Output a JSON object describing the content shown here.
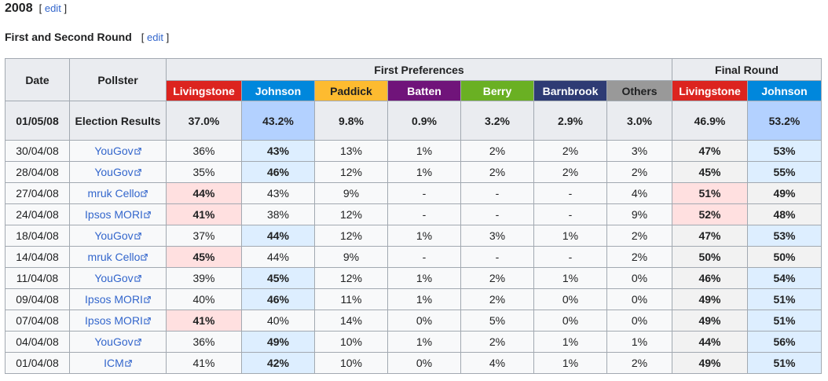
{
  "section": {
    "title": "2008",
    "edit_open": "[",
    "edit_label": "edit",
    "edit_close": "]"
  },
  "subsection": {
    "title": "First and Second Round",
    "edit_open": "[",
    "edit_label": "edit",
    "edit_close": "]"
  },
  "colors": {
    "livingstone": "#dc241f",
    "johnson": "#0087dc",
    "paddick": "#fdbb30",
    "batten": "#70147a",
    "berry": "#6ab023",
    "barnbrook": "#2e3b74",
    "others": "#999999"
  },
  "table": {
    "headers": {
      "date": "Date",
      "pollster": "Pollster",
      "first_prefs": "First Preferences",
      "final_round": "Final Round",
      "candidates": [
        "Livingstone",
        "Johnson",
        "Paddick",
        "Batten",
        "Berry",
        "Barnbrook",
        "Others"
      ],
      "final_candidates": [
        "Livingstone",
        "Johnson"
      ]
    },
    "election": {
      "date": "01/05/08",
      "label": "Election Results",
      "values": [
        "37.0%",
        "43.2%",
        "9.8%",
        "0.9%",
        "3.2%",
        "2.9%",
        "3.0%"
      ],
      "final": [
        "46.9%",
        "53.2%"
      ]
    },
    "rows": [
      {
        "date": "30/04/08",
        "pollster": "YouGov",
        "values": [
          "36%",
          "43%",
          "13%",
          "1%",
          "2%",
          "2%",
          "3%"
        ],
        "final": [
          "47%",
          "53%"
        ],
        "lead": "johnson",
        "final_lead": "johnson"
      },
      {
        "date": "28/04/08",
        "pollster": "YouGov",
        "values": [
          "35%",
          "46%",
          "12%",
          "1%",
          "2%",
          "2%",
          "2%"
        ],
        "final": [
          "45%",
          "55%"
        ],
        "lead": "johnson",
        "final_lead": "johnson"
      },
      {
        "date": "27/04/08",
        "pollster": "mruk Cello",
        "values": [
          "44%",
          "43%",
          "9%",
          "-",
          "-",
          "-",
          "4%"
        ],
        "final": [
          "51%",
          "49%"
        ],
        "lead": "livingstone",
        "final_lead": "livingstone"
      },
      {
        "date": "24/04/08",
        "pollster": "Ipsos MORI",
        "values": [
          "41%",
          "38%",
          "12%",
          "-",
          "-",
          "-",
          "9%"
        ],
        "final": [
          "52%",
          "48%"
        ],
        "lead": "livingstone",
        "final_lead": "livingstone"
      },
      {
        "date": "18/04/08",
        "pollster": "YouGov",
        "values": [
          "37%",
          "44%",
          "12%",
          "1%",
          "3%",
          "1%",
          "2%"
        ],
        "final": [
          "47%",
          "53%"
        ],
        "lead": "johnson",
        "final_lead": "johnson"
      },
      {
        "date": "14/04/08",
        "pollster": "mruk Cello",
        "values": [
          "45%",
          "44%",
          "9%",
          "-",
          "-",
          "-",
          "2%"
        ],
        "final": [
          "50%",
          "50%"
        ],
        "lead": "livingstone",
        "final_lead": "tie"
      },
      {
        "date": "11/04/08",
        "pollster": "YouGov",
        "values": [
          "39%",
          "45%",
          "12%",
          "1%",
          "2%",
          "1%",
          "0%"
        ],
        "final": [
          "46%",
          "54%"
        ],
        "lead": "johnson",
        "final_lead": "johnson"
      },
      {
        "date": "09/04/08",
        "pollster": "Ipsos MORI",
        "values": [
          "40%",
          "46%",
          "11%",
          "1%",
          "2%",
          "0%",
          "0%"
        ],
        "final": [
          "49%",
          "51%"
        ],
        "lead": "johnson",
        "final_lead": "johnson"
      },
      {
        "date": "07/04/08",
        "pollster": "Ipsos MORI",
        "values": [
          "41%",
          "40%",
          "14%",
          "0%",
          "5%",
          "0%",
          "0%"
        ],
        "final": [
          "49%",
          "51%"
        ],
        "lead": "livingstone",
        "final_lead": "johnson"
      },
      {
        "date": "04/04/08",
        "pollster": "YouGov",
        "values": [
          "36%",
          "49%",
          "10%",
          "1%",
          "2%",
          "1%",
          "1%"
        ],
        "final": [
          "44%",
          "56%"
        ],
        "lead": "johnson",
        "final_lead": "johnson"
      },
      {
        "date": "01/04/08",
        "pollster": "ICM",
        "values": [
          "41%",
          "42%",
          "10%",
          "0%",
          "4%",
          "1%",
          "2%"
        ],
        "final": [
          "49%",
          "51%"
        ],
        "lead": "johnson",
        "final_lead": "johnson"
      }
    ]
  }
}
